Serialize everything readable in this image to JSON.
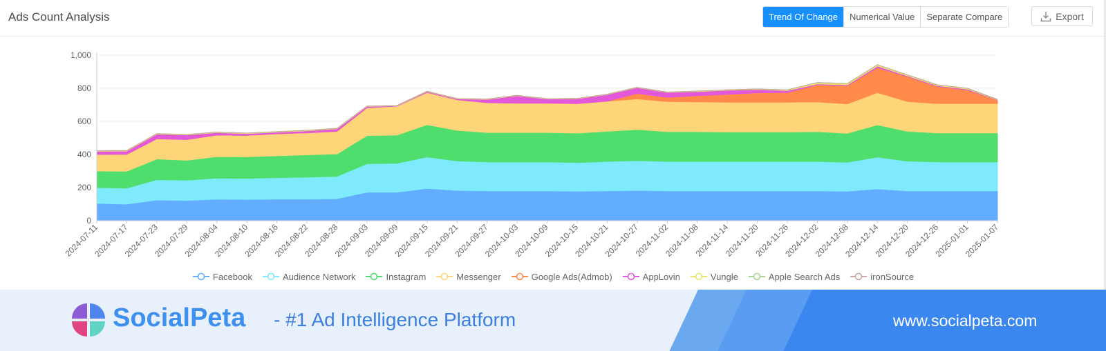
{
  "panel": {
    "title": "Ads Count Analysis",
    "view_tabs": [
      {
        "label": "Trend Of Change",
        "active": true
      },
      {
        "label": "Numerical Value",
        "active": false
      },
      {
        "label": "Separate Compare",
        "active": false
      }
    ],
    "export_label": "Export"
  },
  "chart_data": {
    "type": "area",
    "stacked": true,
    "title": "",
    "xlabel": "",
    "ylabel": "",
    "ylim": [
      0,
      1000
    ],
    "yticks": [
      "0",
      "200",
      "400",
      "600",
      "800",
      "1,000"
    ],
    "grid": true,
    "legend_position": "bottom",
    "x": [
      "2024-07-11",
      "2024-07-17",
      "2024-07-23",
      "2024-07-29",
      "2024-08-04",
      "2024-08-10",
      "2024-08-16",
      "2024-08-22",
      "2024-08-28",
      "2024-09-03",
      "2024-09-09",
      "2024-09-15",
      "2024-09-21",
      "2024-09-27",
      "2024-10-03",
      "2024-10-09",
      "2024-10-15",
      "2024-10-21",
      "2024-10-27",
      "2024-11-02",
      "2024-11-08",
      "2024-11-14",
      "2024-11-20",
      "2024-11-26",
      "2024-12-02",
      "2024-12-08",
      "2024-12-14",
      "2024-12-20",
      "2024-12-26",
      "2025-01-01",
      "2025-01-07"
    ],
    "series": [
      {
        "name": "Facebook",
        "color": "#62adff",
        "values": [
          105,
          100,
          125,
          122,
          130,
          128,
          130,
          130,
          133,
          172,
          172,
          195,
          183,
          180,
          180,
          180,
          178,
          180,
          183,
          180,
          180,
          180,
          180,
          180,
          180,
          178,
          192,
          180,
          180,
          180,
          180
        ]
      },
      {
        "name": "Audience Network",
        "color": "#7eeafb",
        "values": [
          95,
          97,
          123,
          123,
          127,
          128,
          130,
          133,
          135,
          172,
          175,
          190,
          178,
          175,
          175,
          175,
          173,
          178,
          180,
          178,
          178,
          178,
          178,
          178,
          178,
          175,
          192,
          180,
          175,
          175,
          175
        ]
      },
      {
        "name": "Instagram",
        "color": "#4fde6e",
        "values": [
          100,
          102,
          125,
          120,
          130,
          130,
          132,
          135,
          135,
          170,
          170,
          195,
          185,
          178,
          178,
          178,
          178,
          182,
          188,
          180,
          180,
          178,
          178,
          178,
          180,
          175,
          195,
          180,
          175,
          175,
          175
        ]
      },
      {
        "name": "Messenger",
        "color": "#ffd57a",
        "values": [
          100,
          102,
          122,
          125,
          130,
          130,
          133,
          133,
          137,
          168,
          175,
          195,
          185,
          180,
          177,
          177,
          178,
          182,
          185,
          182,
          180,
          180,
          180,
          180,
          180,
          178,
          195,
          180,
          178,
          178,
          178
        ]
      },
      {
        "name": "Google Ads(Admob)",
        "color": "#ff8a4a",
        "values": [
          0,
          0,
          0,
          0,
          0,
          0,
          0,
          0,
          0,
          0,
          0,
          0,
          0,
          0,
          0,
          0,
          0,
          0,
          33,
          25,
          37,
          47,
          57,
          58,
          103,
          110,
          150,
          150,
          103,
          82,
          20
        ]
      },
      {
        "name": "AppLovin",
        "color": "#e358db",
        "values": [
          20,
          20,
          28,
          28,
          15,
          10,
          10,
          12,
          15,
          8,
          2,
          5,
          5,
          20,
          45,
          25,
          30,
          40,
          35,
          30,
          25,
          25,
          20,
          12,
          5,
          5,
          10,
          5,
          5,
          5,
          2
        ]
      },
      {
        "name": "Vungle",
        "color": "#e6e76a",
        "values": [
          3,
          3,
          3,
          3,
          3,
          3,
          3,
          3,
          3,
          2,
          2,
          2,
          2,
          2,
          2,
          2,
          2,
          2,
          2,
          2,
          3,
          3,
          3,
          5,
          8,
          8,
          8,
          6,
          5,
          5,
          3
        ]
      },
      {
        "name": "Apple Search Ads",
        "color": "#a6d48e",
        "values": [
          0,
          0,
          0,
          0,
          0,
          0,
          0,
          0,
          0,
          0,
          0,
          0,
          0,
          0,
          0,
          0,
          0,
          0,
          0,
          0,
          0,
          0,
          0,
          0,
          0,
          0,
          0,
          0,
          0,
          0,
          0
        ]
      },
      {
        "name": "ironSource",
        "color": "#c8a5a0",
        "values": [
          0,
          0,
          0,
          0,
          0,
          0,
          0,
          0,
          0,
          0,
          0,
          0,
          0,
          0,
          0,
          0,
          0,
          0,
          0,
          0,
          0,
          0,
          0,
          0,
          0,
          0,
          0,
          0,
          0,
          0,
          0
        ]
      }
    ]
  },
  "banner": {
    "brand_name": "SocialPeta",
    "tagline": "- #1 Ad Intelligence Platform",
    "url": "www.socialpeta.com"
  }
}
